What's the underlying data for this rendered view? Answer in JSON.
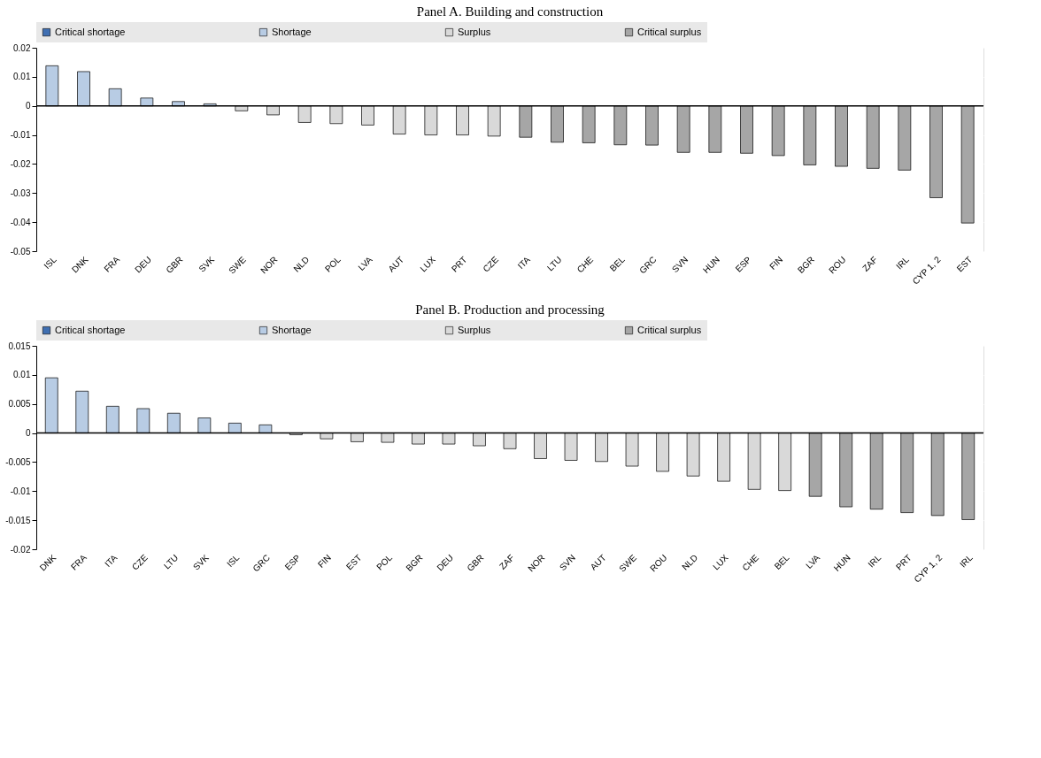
{
  "chart_data": [
    {
      "type": "bar",
      "title": "Panel A. Building and construction",
      "categories": [
        "ISL",
        "DNK",
        "FRA",
        "DEU",
        "GBR",
        "SVK",
        "SWE",
        "NOR",
        "NLD",
        "POL",
        "LVA",
        "AUT",
        "LUX",
        "PRT",
        "CZE",
        "ITA",
        "LTU",
        "CHE",
        "BEL",
        "GRC",
        "SVN",
        "HUN",
        "ESP",
        "FIN",
        "BGR",
        "ROU",
        "ZAF",
        "IRL",
        "CYP 1, 2",
        "EST"
      ],
      "series": [
        {
          "name": "Critical shortage",
          "color": "#3f6fb2",
          "values": [
            null,
            null,
            null,
            null,
            null,
            null,
            null,
            null,
            null,
            null,
            null,
            null,
            null,
            null,
            null,
            null,
            null,
            null,
            null,
            null,
            null,
            null,
            null,
            null,
            null,
            null,
            null,
            null,
            null,
            null
          ]
        },
        {
          "name": "Shortage",
          "color": "#b8cce4",
          "values": [
            0.0138,
            0.0118,
            0.0059,
            0.0027,
            0.0015,
            0.0007,
            null,
            null,
            null,
            null,
            null,
            null,
            null,
            null,
            null,
            null,
            null,
            null,
            null,
            null,
            null,
            null,
            null,
            null,
            null,
            null,
            null,
            null,
            null,
            null
          ]
        },
        {
          "name": "Surplus",
          "color": "#d9d9d9",
          "values": [
            null,
            null,
            null,
            null,
            null,
            null,
            -0.0017,
            -0.0031,
            -0.0057,
            -0.0061,
            -0.0066,
            -0.0097,
            -0.01,
            -0.01,
            -0.0104,
            null,
            null,
            null,
            null,
            null,
            null,
            null,
            null,
            null,
            null,
            null,
            null,
            null,
            null,
            null
          ]
        },
        {
          "name": "Critical surplus",
          "color": "#a6a6a6",
          "values": [
            null,
            null,
            null,
            null,
            null,
            null,
            null,
            null,
            null,
            null,
            null,
            null,
            null,
            null,
            null,
            -0.0108,
            -0.0125,
            -0.0127,
            -0.0134,
            -0.0135,
            -0.016,
            -0.016,
            -0.0163,
            -0.0171,
            -0.0203,
            -0.0208,
            -0.0215,
            -0.0221,
            -0.0316,
            -0.0403
          ]
        }
      ],
      "ylim": [
        -0.05,
        0.02
      ],
      "yticks": [
        -0.05,
        -0.04,
        -0.03,
        -0.02,
        -0.01,
        0,
        0.01,
        0.02
      ],
      "ref_lines": [
        {
          "axis": "y",
          "value": 0,
          "color": "#000000"
        }
      ],
      "grid": true,
      "legend": "top"
    },
    {
      "type": "bar",
      "title": "Panel B. Production and processing",
      "categories": [
        "DNK",
        "FRA",
        "ITA",
        "CZE",
        "LTU",
        "SVK",
        "ISL",
        "GRC",
        "ESP",
        "FIN",
        "EST",
        "POL",
        "BGR",
        "DEU",
        "GBR",
        "ZAF",
        "NOR",
        "SVN",
        "AUT",
        "SWE",
        "ROU",
        "NLD",
        "LUX",
        "CHE",
        "BEL",
        "LVA",
        "HUN",
        "IRL",
        "PRT",
        "CYP 1, 2",
        "IRL"
      ],
      "series": [
        {
          "name": "Critical shortage",
          "color": "#3f6fb2",
          "values": [
            null,
            null,
            null,
            null,
            null,
            null,
            null,
            null,
            null,
            null,
            null,
            null,
            null,
            null,
            null,
            null,
            null,
            null,
            null,
            null,
            null,
            null,
            null,
            null,
            null,
            null,
            null,
            null,
            null,
            null,
            null
          ]
        },
        {
          "name": "Shortage",
          "color": "#b8cce4",
          "values": [
            0.0095,
            0.0072,
            0.0046,
            0.0042,
            0.0034,
            0.0026,
            0.0017,
            0.0014,
            null,
            null,
            null,
            null,
            null,
            null,
            null,
            null,
            null,
            null,
            null,
            null,
            null,
            null,
            null,
            null,
            null,
            null,
            null,
            null,
            null,
            null,
            null
          ]
        },
        {
          "name": "Surplus",
          "color": "#d9d9d9",
          "values": [
            null,
            null,
            null,
            null,
            null,
            null,
            null,
            null,
            -0.0003,
            -0.001,
            -0.0015,
            -0.0016,
            -0.0019,
            -0.0019,
            -0.0022,
            -0.0027,
            -0.0044,
            -0.0047,
            -0.0049,
            -0.0057,
            -0.0066,
            -0.0074,
            -0.0083,
            -0.0097,
            -0.0099,
            null,
            null,
            null,
            null,
            null,
            null
          ]
        },
        {
          "name": "Critical surplus",
          "color": "#a6a6a6",
          "values": [
            null,
            null,
            null,
            null,
            null,
            null,
            null,
            null,
            null,
            null,
            null,
            null,
            null,
            null,
            null,
            null,
            null,
            null,
            null,
            null,
            null,
            null,
            null,
            null,
            null,
            -0.0109,
            -0.0127,
            -0.0131,
            -0.0137,
            -0.0142,
            -0.0149
          ]
        }
      ],
      "ylim": [
        -0.02,
        0.015
      ],
      "yticks": [
        -0.02,
        -0.015,
        -0.01,
        -0.005,
        0,
        0.005,
        0.01,
        0.015
      ],
      "ref_lines": [
        {
          "axis": "y",
          "value": 0,
          "color": "#000000"
        }
      ],
      "grid": true,
      "legend": "top"
    }
  ]
}
